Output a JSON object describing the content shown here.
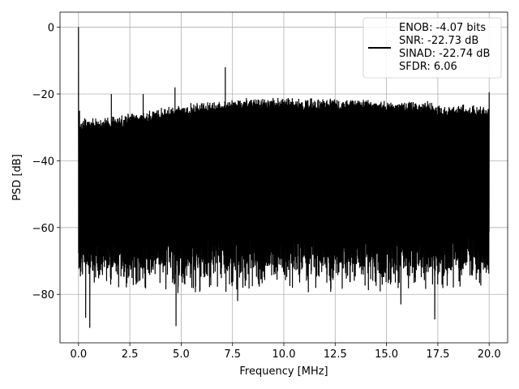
{
  "chart_data": {
    "type": "line",
    "xlabel": "Frequency [MHz]",
    "ylabel": "PSD [dB]",
    "xlim": [
      -0.9,
      20.9
    ],
    "ylim": [
      -94.5,
      4.5
    ],
    "x_ticks": [
      0.0,
      2.5,
      5.0,
      7.5,
      10.0,
      12.5,
      15.0,
      17.5,
      20.0
    ],
    "x_tick_labels": [
      "0.0",
      "2.5",
      "5.0",
      "7.5",
      "10.0",
      "12.5",
      "15.0",
      "17.5",
      "20.0"
    ],
    "y_ticks": [
      0,
      -20,
      -40,
      -60,
      -80
    ],
    "y_tick_labels": [
      "0",
      "−20",
      "−40",
      "−60",
      "−80"
    ],
    "grid": true,
    "legend_position": "top-right",
    "series": [
      {
        "name": "ENOB: -4.07 bits\nSNR: -22.73 dB\nSINAD: -22.74 dB\nSFDR: 6.06",
        "color": "#000000",
        "x_range": [
          0.0,
          20.0
        ],
        "upper_envelope": {
          "x": [
            0.0,
            0.3,
            1.0,
            2.0,
            3.0,
            4.0,
            5.0,
            6.0,
            7.0,
            8.0,
            9.0,
            10.0,
            11.0,
            12.0,
            13.0,
            14.0,
            15.0,
            16.0,
            17.0,
            18.0,
            19.0,
            20.0
          ],
          "y": [
            -31,
            -30,
            -30,
            -29,
            -28,
            -27,
            -26,
            -25,
            -25,
            -24,
            -24,
            -24,
            -24,
            -24,
            -24,
            -24,
            -25,
            -25,
            -25,
            -26,
            -26,
            -27
          ]
        },
        "noise_floor_band": [
          -72,
          -30
        ],
        "spikes": [
          {
            "x": 0.0,
            "y": 0
          },
          {
            "x": 0.05,
            "y": -25
          },
          {
            "x": 1.6,
            "y": -20
          },
          {
            "x": 3.15,
            "y": -20
          },
          {
            "x": 4.7,
            "y": -18
          },
          {
            "x": 7.15,
            "y": -12
          },
          {
            "x": 20.0,
            "y": -19.5
          }
        ],
        "dips": [
          {
            "x": 0.35,
            "y": -87
          },
          {
            "x": 0.55,
            "y": -90
          },
          {
            "x": 4.75,
            "y": -89.5
          },
          {
            "x": 7.75,
            "y": -82
          },
          {
            "x": 15.7,
            "y": -83
          },
          {
            "x": 17.35,
            "y": -87.5
          }
        ]
      }
    ]
  }
}
